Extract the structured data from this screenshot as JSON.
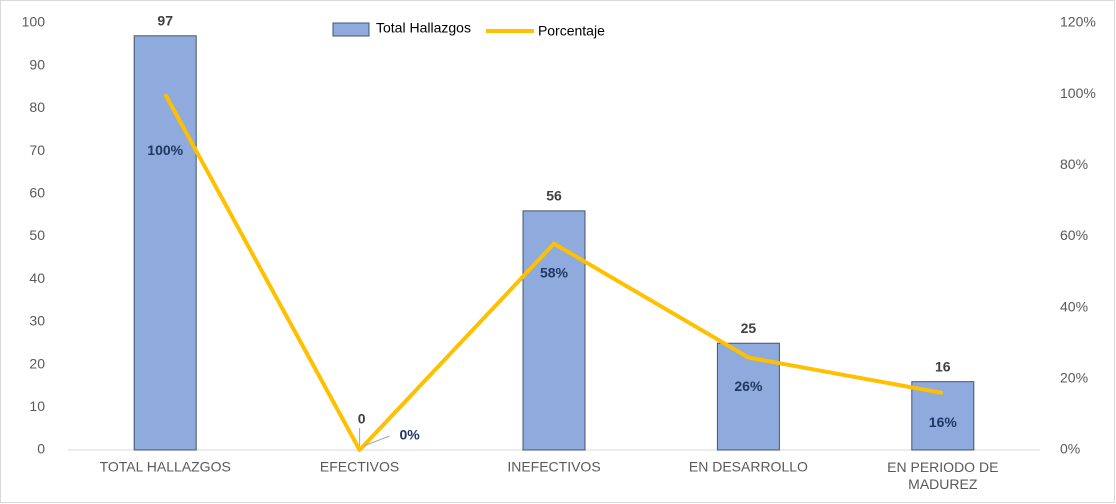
{
  "chart_data": {
    "type": "bar",
    "categories": [
      "TOTAL HALLAZGOS",
      "EFECTIVOS",
      "INEFECTIVOS",
      "EN DESARROLLO",
      "EN PERIODO DE MADUREZ"
    ],
    "series": [
      {
        "name": "Total Hallazgos",
        "type": "bar",
        "color": "#8faadc",
        "values": [
          97,
          0,
          56,
          25,
          16
        ]
      },
      {
        "name": "Porcentaje",
        "type": "line",
        "color": "#ffc000",
        "axis": "y2",
        "values": [
          100,
          0,
          58,
          26,
          16
        ],
        "value_labels": [
          "100%",
          "0%",
          "58%",
          "26%",
          "16%"
        ]
      }
    ],
    "ylim": [
      0,
      100
    ],
    "yticks": [
      0,
      10,
      20,
      30,
      40,
      50,
      60,
      70,
      80,
      90,
      100
    ],
    "y2lim": [
      0,
      120
    ],
    "y2ticks": [
      {
        "value": 0,
        "label": "0%"
      },
      {
        "value": 20,
        "label": "20%"
      },
      {
        "value": 40,
        "label": "40%"
      },
      {
        "value": 60,
        "label": "60%"
      },
      {
        "value": 80,
        "label": "80%"
      },
      {
        "value": 100,
        "label": "100%"
      },
      {
        "value": 120,
        "label": "120%"
      }
    ],
    "legend": "top"
  }
}
